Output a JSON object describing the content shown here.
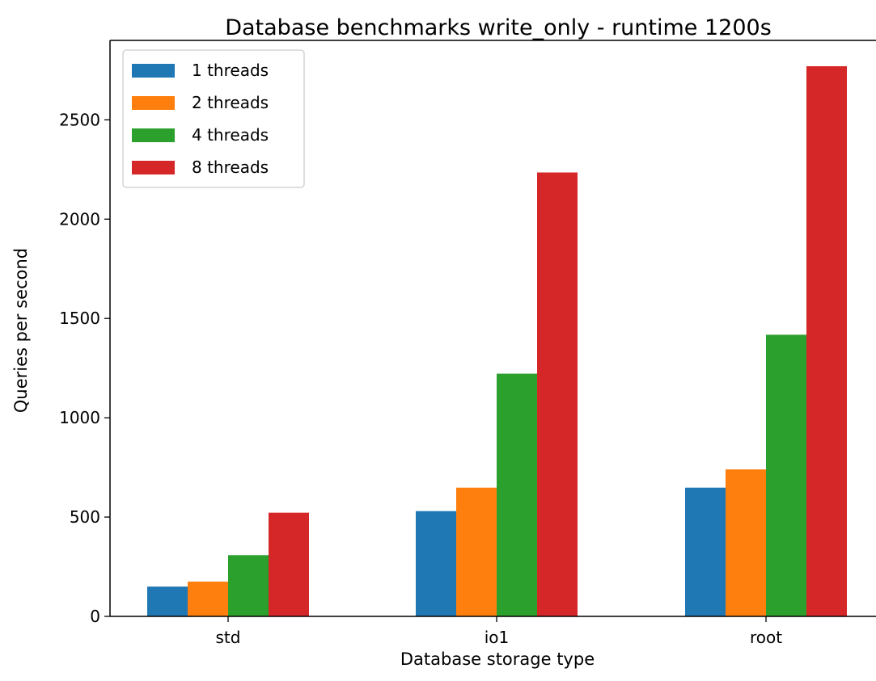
{
  "chart_data": {
    "type": "bar",
    "title": "Database benchmarks write_only - runtime 1200s",
    "xlabel": "Database storage type",
    "ylabel": "Queries per second",
    "categories": [
      "std",
      "io1",
      "root"
    ],
    "ylim": [
      0,
      2900
    ],
    "yticks": [
      0,
      500,
      1000,
      1500,
      2000,
      2500
    ],
    "ytick_labels": [
      "0",
      "500",
      "1000",
      "1500",
      "2000",
      "2500"
    ],
    "grid": false,
    "legend_position": "top-left",
    "series": [
      {
        "name": "1 threads",
        "color": "#1f77b4",
        "values": [
          150,
          530,
          648
        ]
      },
      {
        "name": "2 threads",
        "color": "#ff7f0e",
        "values": [
          175,
          648,
          740
        ]
      },
      {
        "name": "4 threads",
        "color": "#2ca02c",
        "values": [
          308,
          1222,
          1418
        ]
      },
      {
        "name": "8 threads",
        "color": "#d62728",
        "values": [
          522,
          2235,
          2770
        ]
      }
    ]
  }
}
